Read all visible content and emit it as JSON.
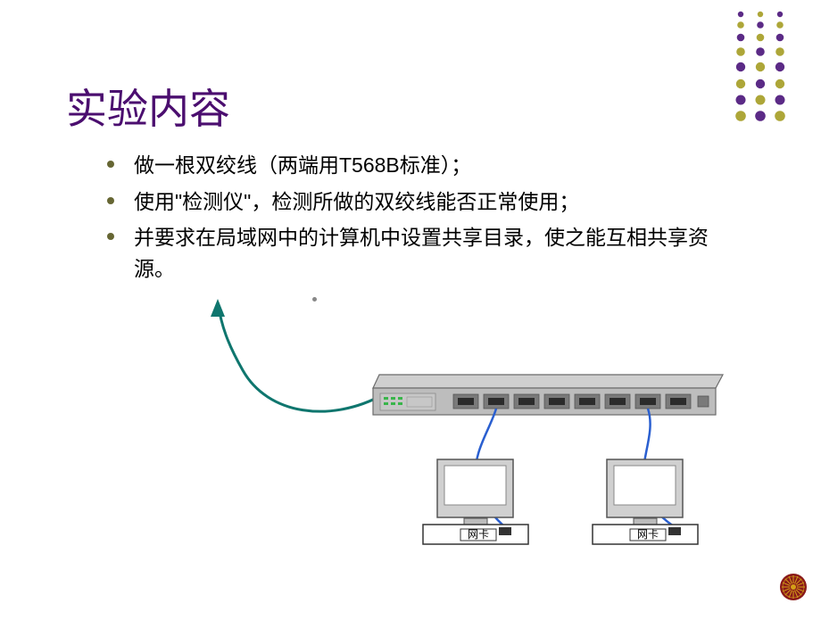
{
  "slide": {
    "title": "实验内容",
    "bullets": [
      "做一根双绞线（两端用T568B标准）；",
      "使用\"检测仪\"，检测所做的双绞线能否正常使用；",
      "并要求在局域网中的计算机中设置共享目录，使之能互相共享资源。"
    ],
    "nic_label": "网卡"
  },
  "colors": {
    "title": "#4b0e6f",
    "bullet_dot": "#666633",
    "text": "#000000",
    "dot_purple": "#5b2a86",
    "dot_olive": "#ada638",
    "switch_body": "#bdbdbd",
    "switch_port": "#8a8a8a",
    "switch_led": "#39b54a",
    "computer_body": "#d6d6d6",
    "computer_screen": "#ffffff",
    "cable_green": "#0f766e",
    "cable_blue": "#2a5fd0",
    "rosette": "#8a1a1a"
  }
}
